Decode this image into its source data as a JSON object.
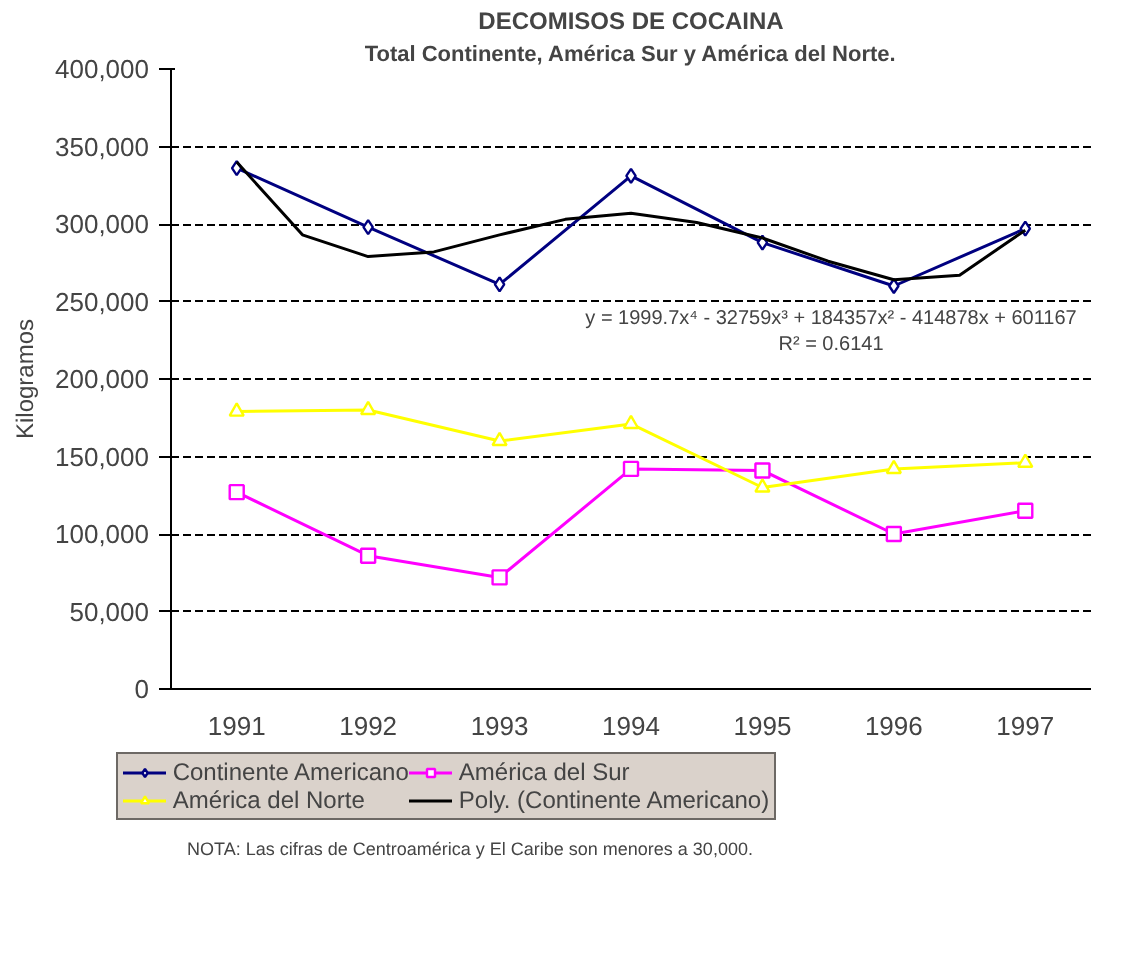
{
  "chart_data": {
    "type": "line",
    "title": "DECOMISOS DE COCAINA",
    "subtitle": "Total Continente, América Sur y América del Norte.",
    "ylabel": "Kilogramos",
    "x": [
      1991,
      1992,
      1993,
      1994,
      1995,
      1996,
      1997
    ],
    "xlim": [
      1990.5,
      1997.5
    ],
    "xticks": [
      1991,
      1992,
      1993,
      1994,
      1995,
      1996,
      1997
    ],
    "ylim": [
      0,
      400000
    ],
    "yticks": [
      {
        "value": 0,
        "label": "0"
      },
      {
        "value": 50000,
        "label": "50,000"
      },
      {
        "value": 100000,
        "label": "100,000"
      },
      {
        "value": 150000,
        "label": "150,000"
      },
      {
        "value": 200000,
        "label": "200,000"
      },
      {
        "value": 250000,
        "label": "250,000"
      },
      {
        "value": 300000,
        "label": "300,000"
      },
      {
        "value": 350000,
        "label": "350,000"
      },
      {
        "value": 400000,
        "label": "400,000"
      }
    ],
    "grid": "y",
    "legend": "bottom",
    "series": [
      {
        "name": "Continente Americano",
        "color": "#000080",
        "marker": "diamond",
        "values": [
          336000,
          298000,
          261000,
          331000,
          288000,
          260000,
          297000
        ]
      },
      {
        "name": "América del Sur",
        "color": "#ff00ff",
        "marker": "square",
        "values": [
          127000,
          86000,
          72000,
          142000,
          141000,
          100000,
          115000
        ]
      },
      {
        "name": "América del Norte",
        "color": "#ffff00",
        "marker": "triangle",
        "values": [
          179000,
          180000,
          160000,
          171000,
          130000,
          142000,
          146000
        ]
      },
      {
        "name": "Poly. (Continente Americano)",
        "color": "#000000",
        "marker": "none",
        "x": [
          1991,
          1991.5,
          1992,
          1992.5,
          1993,
          1993.5,
          1994,
          1994.5,
          1995,
          1995.5,
          1996,
          1996.5,
          1997
        ],
        "values": [
          340000,
          293000,
          279000,
          282000,
          293000,
          303000,
          307000,
          301000,
          291000,
          276000,
          264000,
          267000,
          296000
        ]
      }
    ],
    "annotations": [
      "y = 1999.7x⁴ - 32759x³ + 184357x² - 414878x + 601167",
      "R² = 0.6141",
      "NOTA: Las cifras de Centroamérica y El Caribe son menores a 30,000."
    ]
  }
}
